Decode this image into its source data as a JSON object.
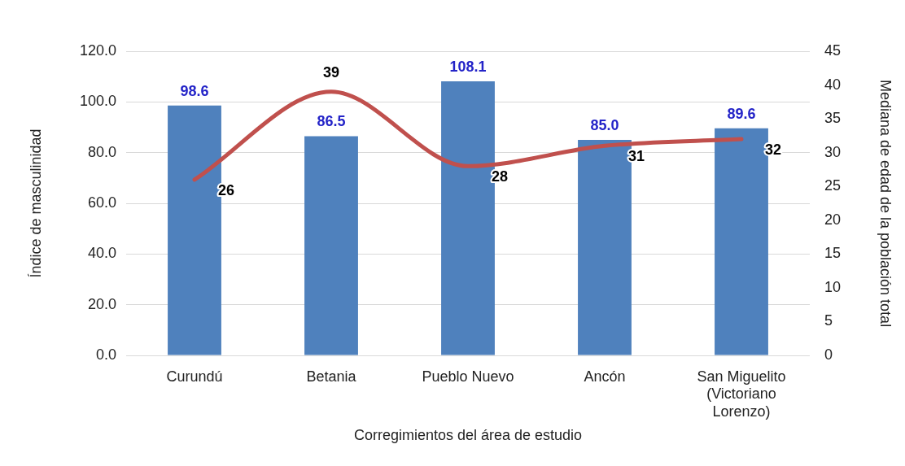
{
  "chart_data": {
    "type": "bar",
    "categories": [
      "Curundú",
      "Betania",
      "Pueblo Nuevo",
      "Ancón",
      "San Miguelito (Victoriano Lorenzo)"
    ],
    "series": [
      {
        "type": "bar",
        "color": "#4f81bd",
        "values": [
          98.6,
          86.5,
          108.1,
          85.0,
          89.6
        ],
        "value_labels": [
          "98.6",
          "86.5",
          "108.1",
          "85.0",
          "89.6"
        ]
      },
      {
        "type": "line",
        "axis": "y2",
        "color": "#c0504d",
        "values": [
          26,
          39,
          28,
          31,
          32
        ],
        "value_labels": [
          "26",
          "39",
          "28",
          "31",
          "32"
        ]
      }
    ],
    "xlabel": "Corregimientos del área de estudio",
    "ylabel": "Índice de masculinidad",
    "y2label": "Mediana de edad de la población total",
    "ylim": [
      0,
      120
    ],
    "yticks": [
      {
        "value": 0,
        "label": "0.0"
      },
      {
        "value": 20,
        "label": "20.0"
      },
      {
        "value": 40,
        "label": "40.0"
      },
      {
        "value": 60,
        "label": "60.0"
      },
      {
        "value": 80,
        "label": "80.0"
      },
      {
        "value": 100,
        "label": "100.0"
      },
      {
        "value": 120,
        "label": "120.0"
      }
    ],
    "y2lim": [
      0,
      45
    ],
    "y2ticks": [
      0,
      5,
      10,
      15,
      20,
      25,
      30,
      35,
      40,
      45
    ],
    "grid": "y",
    "legend": false,
    "marker": "none",
    "line_style": "solid"
  }
}
